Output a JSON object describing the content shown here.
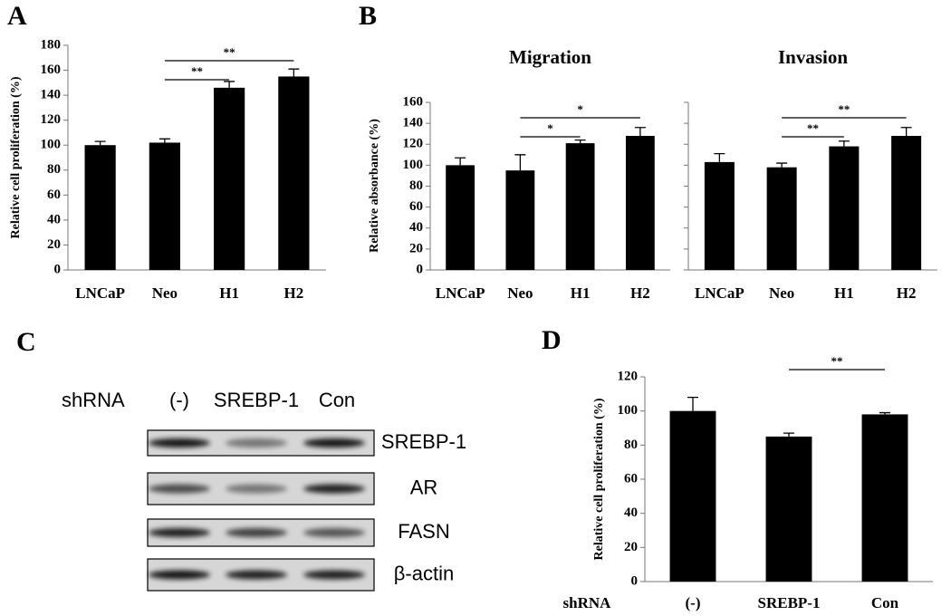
{
  "panel_labels": [
    "A",
    "B",
    "C",
    "D"
  ],
  "chart_data": [
    {
      "type": "bar",
      "y_label": "Relative cell proliferation (%)",
      "categories": [
        "LNCaP",
        "Neo",
        "H1",
        "H2"
      ],
      "values": [
        100,
        102,
        146,
        155
      ],
      "errors": [
        3,
        3,
        5,
        6
      ],
      "color": "#000000",
      "ylim": [
        0,
        180
      ],
      "yticks": [
        0,
        20,
        40,
        60,
        80,
        100,
        120,
        140,
        160,
        180
      ],
      "significance": [
        {
          "between": [
            "Neo",
            "H1"
          ],
          "label": "**"
        },
        {
          "between": [
            "Neo",
            "H2"
          ],
          "label": "**"
        }
      ]
    },
    {
      "type": "bar",
      "title": "Migration",
      "y_label": "Relative absorbance (%)",
      "categories": [
        "LNCaP",
        "Neo",
        "H1",
        "H2"
      ],
      "values": [
        100,
        95,
        121,
        128
      ],
      "errors": [
        7,
        15,
        3,
        8
      ],
      "color": "#000000",
      "ylim": [
        0,
        160
      ],
      "yticks": [
        0,
        20,
        40,
        60,
        80,
        100,
        120,
        140,
        160
      ],
      "significance": [
        {
          "between": [
            "Neo",
            "H1"
          ],
          "label": "*"
        },
        {
          "between": [
            "Neo",
            "H2"
          ],
          "label": "*"
        }
      ]
    },
    {
      "type": "bar",
      "title": "Invasion",
      "categories": [
        "LNCaP",
        "Neo",
        "H1",
        "H2"
      ],
      "values": [
        103,
        98,
        118,
        128
      ],
      "errors": [
        8,
        4,
        5,
        8
      ],
      "color": "#000000",
      "ylim": [
        0,
        160
      ],
      "yticks": [
        0,
        20,
        40,
        60,
        80,
        100,
        120,
        140,
        160
      ],
      "tick_labels": false,
      "significance": [
        {
          "between": [
            "Neo",
            "H1"
          ],
          "label": "**"
        },
        {
          "between": [
            "Neo",
            "H2"
          ],
          "label": "**"
        }
      ]
    },
    {
      "type": "bar",
      "y_label": "Relative cell proliferation (%)",
      "x_label": "shRNA",
      "categories": [
        "(-)",
        "SREBP-1",
        "Con"
      ],
      "values": [
        100,
        85,
        98
      ],
      "errors": [
        8,
        2,
        1
      ],
      "color": "#000000",
      "ylim": [
        0,
        120
      ],
      "yticks": [
        0,
        20,
        40,
        60,
        80,
        100,
        120
      ],
      "significance": [
        {
          "between": [
            "SREBP-1",
            "Con"
          ],
          "label": "**"
        }
      ]
    }
  ],
  "blot": {
    "header": "shRNA",
    "lanes": [
      "(-)",
      "SREBP-1",
      "Con"
    ],
    "rows": [
      "SREBP-1",
      "AR",
      "FASN",
      "β-actin"
    ]
  }
}
